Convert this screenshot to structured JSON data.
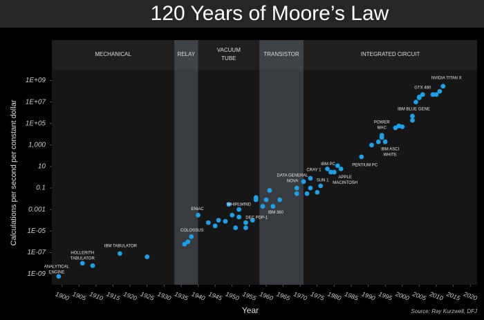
{
  "chart_data": {
    "type": "scatter",
    "title": "120 Years of Moore’s Law",
    "xlabel": "Year",
    "ylabel": "Calculations per second per constant dollar",
    "source": "Source: Ray Kurzwell, DFJ",
    "log_y": true,
    "grid": false,
    "color": "#1e9fe6",
    "xlim": [
      1897,
      2022
    ],
    "xticks": [
      1900,
      1905,
      1910,
      1915,
      1920,
      1925,
      1930,
      1935,
      1940,
      1945,
      1950,
      1955,
      1960,
      1965,
      1970,
      1975,
      1980,
      1985,
      1990,
      1995,
      2000,
      2005,
      2010,
      2015,
      2020
    ],
    "ylim": [
      1e-10,
      10000000000.0
    ],
    "yticks": [
      {
        "value": 1e-09,
        "label": "1E-09"
      },
      {
        "value": 1e-07,
        "label": "1E-07"
      },
      {
        "value": 1e-05,
        "label": "1E-05"
      },
      0.001,
      0.1,
      10,
      {
        "value": 1000,
        "label": "1,000"
      },
      {
        "value": 100000,
        "label": "1E+05"
      },
      {
        "value": 10000000,
        "label": "1E+07"
      },
      {
        "value": 1000000000,
        "label": "1E+09"
      }
    ],
    "eras": [
      {
        "name": [
          "MECHANICAL"
        ],
        "start": 1897,
        "end": 1933,
        "color": "#161616"
      },
      {
        "name": [
          "RELAY"
        ],
        "start": 1933,
        "end": 1940,
        "color": "#383c40"
      },
      {
        "name": [
          "VACUUM",
          "TUBE"
        ],
        "start": 1940,
        "end": 1958,
        "color": "#161616"
      },
      {
        "name": [
          "TRANSISTOR"
        ],
        "start": 1958,
        "end": 1971,
        "color": "#383c40"
      },
      {
        "name": [
          "INTEGRATED CIRCUIT"
        ],
        "start": 1971,
        "end": 2022,
        "color": "#161616"
      }
    ],
    "x": [
      1899,
      1906,
      1909,
      1917,
      1925,
      1936,
      1937,
      1938,
      1940,
      1943,
      1945,
      1946,
      1948,
      1949,
      1950,
      1951,
      1952,
      1952,
      1954,
      1954,
      1956,
      1957,
      1957,
      1959,
      1960,
      1961,
      1962,
      1964,
      1969,
      1969,
      1971,
      1972,
      1973,
      1973,
      1975,
      1976,
      1978,
      1979,
      1980,
      1981,
      1982,
      1988,
      1991,
      1993,
      1994,
      1994,
      1995,
      1998,
      1999,
      2000,
      2003,
      2003,
      2004,
      2005,
      2005,
      2006,
      2009,
      2010,
      2011,
      2012
    ],
    "values": [
      6e-10,
      1e-08,
      6e-09,
      8e-08,
      4e-08,
      6e-07,
      1e-06,
      3e-06,
      0.0003,
      6e-05,
      3e-05,
      0.0001,
      8e-05,
      0.003,
      0.0003,
      2e-05,
      0.0002,
      0.001,
      6e-05,
      2e-05,
      0.0001,
      0.008,
      0.013,
      0.002,
      0.008,
      0.06,
      0.002,
      0.008,
      0.1,
      0.03,
      0.4,
      0.03,
      0.8,
      0.1,
      0.04,
      0.16,
      6,
      3,
      3,
      12,
      6,
      80,
      1000,
      2000,
      8000,
      5000,
      2000,
      40000,
      60000,
      50000,
      200000,
      500000,
      10000000,
      25000000,
      30000000,
      50000000,
      50000000,
      50000000,
      100000000,
      300000000
    ],
    "labels": [
      [
        "ANALYTICAL",
        "ENGINE"
      ],
      [
        "HOLLERITH",
        "TABULATOR"
      ],
      null,
      [
        "IBM TABULATOR"
      ],
      null,
      null,
      null,
      [
        "COLOSSUS"
      ],
      [
        "ENIAC"
      ],
      null,
      null,
      null,
      null,
      null,
      null,
      null,
      null,
      [
        "WHIRLWIND"
      ],
      null,
      null,
      [
        "DEC PDP-1"
      ],
      null,
      null,
      null,
      null,
      null,
      [
        "IBM 360"
      ],
      null,
      null,
      null,
      [
        "DATA GENERAL",
        "NOVA"
      ],
      null,
      [
        "CRAY 1"
      ],
      null,
      null,
      [
        "SUN 1"
      ],
      [
        "IBM PC"
      ],
      null,
      null,
      null,
      [
        "APPLE",
        "MACINTOSH"
      ],
      [
        "PENTIUM PC"
      ],
      null,
      null,
      [
        "POWER",
        "MAC"
      ],
      null,
      [
        "IBM ASCI",
        "WHITE"
      ],
      null,
      null,
      null,
      null,
      [
        "IBM BLUE GENE"
      ],
      null,
      null,
      null,
      [
        "GTX 480"
      ],
      null,
      null,
      null,
      [
        "NVIDIA TITAN X"
      ]
    ]
  }
}
